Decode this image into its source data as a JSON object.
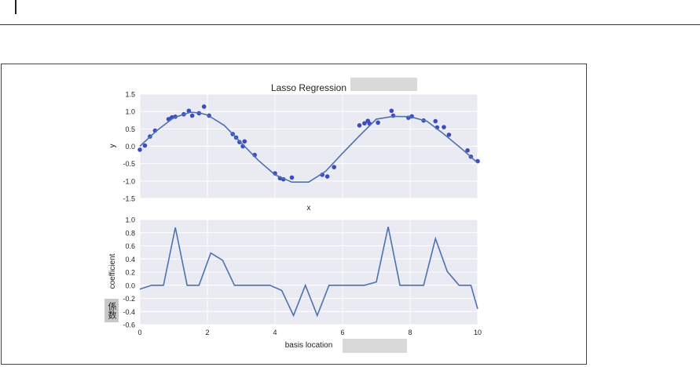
{
  "chart_data": [
    {
      "type": "line",
      "title": "Lasso Regression",
      "xlabel": "x",
      "ylabel": "y",
      "xlim": [
        0,
        10
      ],
      "ylim": [
        -1.5,
        1.5
      ],
      "y_ticks": [
        "1.5",
        "1.0",
        "0.5",
        "0.0",
        "-0.5",
        "-1.0",
        "-1.5"
      ],
      "grid": true,
      "series": [
        {
          "kind": "scatter",
          "color": "#3b4cc0",
          "points": [
            [
              0.0,
              -0.1
            ],
            [
              0.15,
              0.02
            ],
            [
              0.3,
              0.28
            ],
            [
              0.45,
              0.45
            ],
            [
              0.85,
              0.78
            ],
            [
              0.95,
              0.83
            ],
            [
              1.05,
              0.85
            ],
            [
              1.3,
              0.92
            ],
            [
              1.45,
              1.02
            ],
            [
              1.55,
              0.88
            ],
            [
              1.75,
              0.95
            ],
            [
              1.9,
              1.14
            ],
            [
              2.05,
              0.88
            ],
            [
              2.75,
              0.35
            ],
            [
              2.85,
              0.25
            ],
            [
              2.95,
              0.12
            ],
            [
              3.05,
              0.0
            ],
            [
              3.1,
              0.14
            ],
            [
              3.4,
              -0.25
            ],
            [
              4.0,
              -0.78
            ],
            [
              4.15,
              -0.92
            ],
            [
              4.25,
              -0.95
            ],
            [
              4.5,
              -0.9
            ],
            [
              5.4,
              -0.82
            ],
            [
              5.55,
              -0.87
            ],
            [
              5.75,
              -0.6
            ],
            [
              6.5,
              0.6
            ],
            [
              6.65,
              0.66
            ],
            [
              6.75,
              0.73
            ],
            [
              6.8,
              0.65
            ],
            [
              7.05,
              0.68
            ],
            [
              7.45,
              1.02
            ],
            [
              7.5,
              0.88
            ],
            [
              7.95,
              0.82
            ],
            [
              8.05,
              0.86
            ],
            [
              8.4,
              0.74
            ],
            [
              8.75,
              0.72
            ],
            [
              8.8,
              0.54
            ],
            [
              9.0,
              0.55
            ],
            [
              9.15,
              0.33
            ],
            [
              9.7,
              -0.12
            ],
            [
              9.8,
              -0.3
            ],
            [
              10.0,
              -0.43
            ]
          ]
        },
        {
          "kind": "line",
          "color": "#4c72b0",
          "points": [
            [
              0.0,
              0.0
            ],
            [
              0.5,
              0.45
            ],
            [
              1.0,
              0.82
            ],
            [
              1.5,
              0.98
            ],
            [
              1.75,
              0.96
            ],
            [
              2.0,
              0.9
            ],
            [
              2.5,
              0.6
            ],
            [
              3.0,
              0.1
            ],
            [
              3.5,
              -0.4
            ],
            [
              4.0,
              -0.82
            ],
            [
              4.5,
              -1.03
            ],
            [
              5.0,
              -1.03
            ],
            [
              5.5,
              -0.72
            ],
            [
              6.0,
              -0.2
            ],
            [
              6.5,
              0.3
            ],
            [
              7.0,
              0.78
            ],
            [
              7.5,
              0.86
            ],
            [
              8.0,
              0.85
            ],
            [
              8.5,
              0.72
            ],
            [
              9.0,
              0.35
            ],
            [
              9.5,
              -0.05
            ],
            [
              10.0,
              -0.48
            ]
          ]
        }
      ]
    },
    {
      "type": "line",
      "xlabel": "basis location",
      "ylabel": "coefficient",
      "xlim": [
        0,
        10
      ],
      "ylim": [
        -0.6,
        1.0
      ],
      "x_ticks": [
        "0",
        "2",
        "4",
        "6",
        "8",
        "10"
      ],
      "y_ticks": [
        "1.0",
        "0.8",
        "0.6",
        "0.4",
        "0.2",
        "0.0",
        "-0.2",
        "-0.4",
        "-0.6"
      ],
      "grid": true,
      "series": [
        {
          "color": "#4c72b0",
          "points": [
            [
              0.0,
              -0.06
            ],
            [
              0.35,
              0.0
            ],
            [
              0.7,
              0.0
            ],
            [
              1.05,
              0.88
            ],
            [
              1.4,
              0.0
            ],
            [
              1.75,
              0.0
            ],
            [
              2.1,
              0.49
            ],
            [
              2.45,
              0.38
            ],
            [
              2.8,
              0.0
            ],
            [
              3.15,
              0.0
            ],
            [
              3.5,
              0.0
            ],
            [
              3.85,
              0.0
            ],
            [
              4.2,
              -0.08
            ],
            [
              4.55,
              -0.46
            ],
            [
              4.9,
              0.0
            ],
            [
              5.25,
              -0.46
            ],
            [
              5.6,
              0.0
            ],
            [
              5.95,
              0.0
            ],
            [
              6.3,
              0.0
            ],
            [
              6.65,
              0.0
            ],
            [
              7.0,
              0.05
            ],
            [
              7.35,
              0.89
            ],
            [
              7.7,
              0.0
            ],
            [
              8.05,
              0.0
            ],
            [
              8.4,
              0.0
            ],
            [
              8.75,
              0.71
            ],
            [
              9.1,
              0.21
            ],
            [
              9.45,
              0.0
            ],
            [
              9.8,
              0.0
            ],
            [
              10.0,
              -0.36
            ]
          ]
        }
      ]
    }
  ],
  "annotation": {
    "label": "係数"
  }
}
